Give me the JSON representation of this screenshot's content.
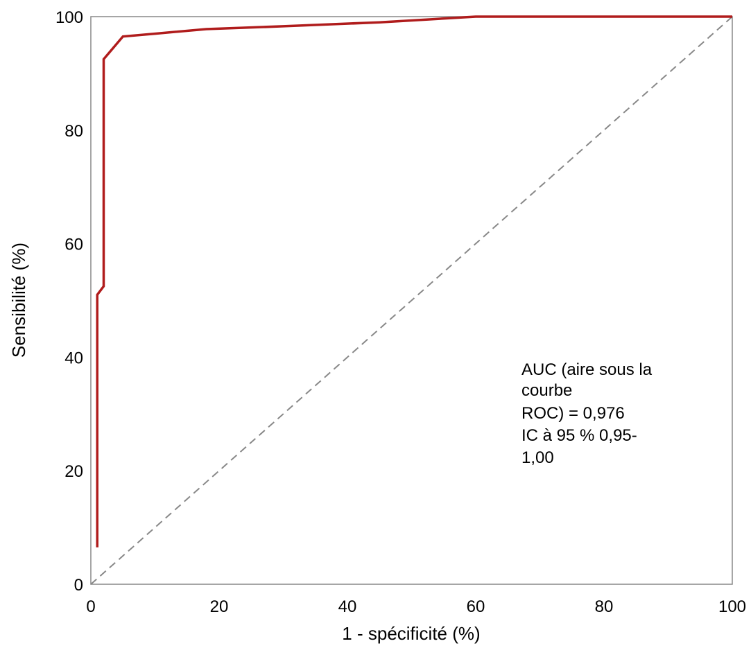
{
  "chart_data": {
    "type": "line",
    "xlabel": "1 - spécificité (%)",
    "ylabel": "Sensibilité (%)",
    "xlim": [
      0,
      100
    ],
    "ylim": [
      0,
      100
    ],
    "x_ticks": [
      "0",
      "20",
      "40",
      "60",
      "80",
      "100"
    ],
    "y_ticks": [
      "0",
      "20",
      "40",
      "60",
      "80",
      "100"
    ],
    "grid": false,
    "series": [
      {
        "color": "#b01c1c",
        "x": [
          1.0,
          1.0,
          2.0,
          2.0,
          5.0,
          10.0,
          18.0,
          30.0,
          45.0,
          60.0,
          100.0
        ],
        "y": [
          6.5,
          51.0,
          52.5,
          92.5,
          96.5,
          97.0,
          97.8,
          98.3,
          99.0,
          100.0,
          100.0
        ]
      },
      {
        "color": "#888888",
        "style": "dashed",
        "x": [
          0,
          100
        ],
        "y": [
          0,
          100
        ]
      }
    ],
    "annotation": {
      "lines": [
        "AUC (aire sous la",
        "courbe",
        "ROC) = 0,976",
        "IC à 95 % 0,95-",
        "1,00"
      ]
    }
  }
}
